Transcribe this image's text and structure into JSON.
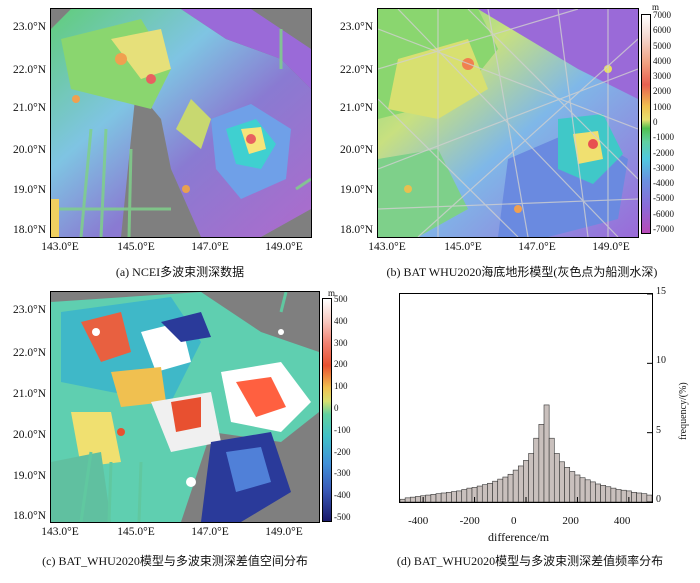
{
  "panels": {
    "a": {
      "caption": "(a) NCEI多波束测深数据",
      "lat_labels": [
        "23.0°N",
        "22.0°N",
        "21.0°N",
        "20.0°N",
        "19.0°N",
        "18.0°N"
      ],
      "lon_labels": [
        "143.0°E",
        "145.0°E",
        "147.0°E",
        "149.0°E"
      ]
    },
    "b": {
      "caption": "(b) BAT  WHU2020海底地形模型(灰色点为船测水深)",
      "lat_labels": [
        "23.0°N",
        "22.0°N",
        "21.0°N",
        "20.0°N",
        "19.0°N",
        "18.0°N"
      ],
      "lon_labels": [
        "143.0°E",
        "145.0°E",
        "147.0°E",
        "149.0°E"
      ],
      "colorbar": {
        "unit": "m",
        "ticks": [
          "7000",
          "6000",
          "5000",
          "4000",
          "3000",
          "2000",
          "1000",
          "0",
          "-1000",
          "-2000",
          "-3000",
          "-4000",
          "-5000",
          "-6000",
          "-7000"
        ]
      }
    },
    "c": {
      "caption": "(c) BAT_WHU2020模型与多波束测深差值空间分布",
      "lat_labels": [
        "23.0°N",
        "22.0°N",
        "21.0°N",
        "20.0°N",
        "19.0°N",
        "18.0°N"
      ],
      "lon_labels": [
        "143.0°E",
        "145.0°E",
        "147.0°E",
        "149.0°E"
      ],
      "colorbar": {
        "unit": "m",
        "ticks": [
          "500",
          "400",
          "300",
          "200",
          "100",
          "0",
          "-100",
          "-200",
          "-300",
          "-400",
          "-500"
        ]
      }
    },
    "d": {
      "caption": "(d) BAT_WHU2020模型与多波束测深差值频率分布"
    }
  },
  "chart_data": {
    "type": "bar",
    "xlabel": "difference/m",
    "ylabel": "frequency/(%)",
    "xlim": [
      -490,
      490
    ],
    "ylim": [
      0,
      15
    ],
    "x_ticks": [
      "-400",
      "-200",
      "0",
      "200",
      "400"
    ],
    "y_ticks": [
      "0",
      "5",
      "10",
      "15"
    ],
    "bin_width": 20,
    "bin_start": -490,
    "values": [
      0.2,
      0.3,
      0.35,
      0.4,
      0.45,
      0.5,
      0.55,
      0.6,
      0.65,
      0.7,
      0.75,
      0.8,
      0.9,
      1.0,
      1.05,
      1.15,
      1.25,
      1.35,
      1.5,
      1.65,
      1.8,
      2.0,
      2.3,
      2.6,
      3.0,
      3.5,
      4.6,
      5.6,
      7.0,
      4.6,
      3.5,
      2.9,
      2.5,
      2.2,
      1.95,
      1.75,
      1.6,
      1.45,
      1.3,
      1.2,
      1.1,
      1.0,
      0.9,
      0.85,
      0.8,
      0.7,
      0.65,
      0.6,
      0.5
    ]
  }
}
